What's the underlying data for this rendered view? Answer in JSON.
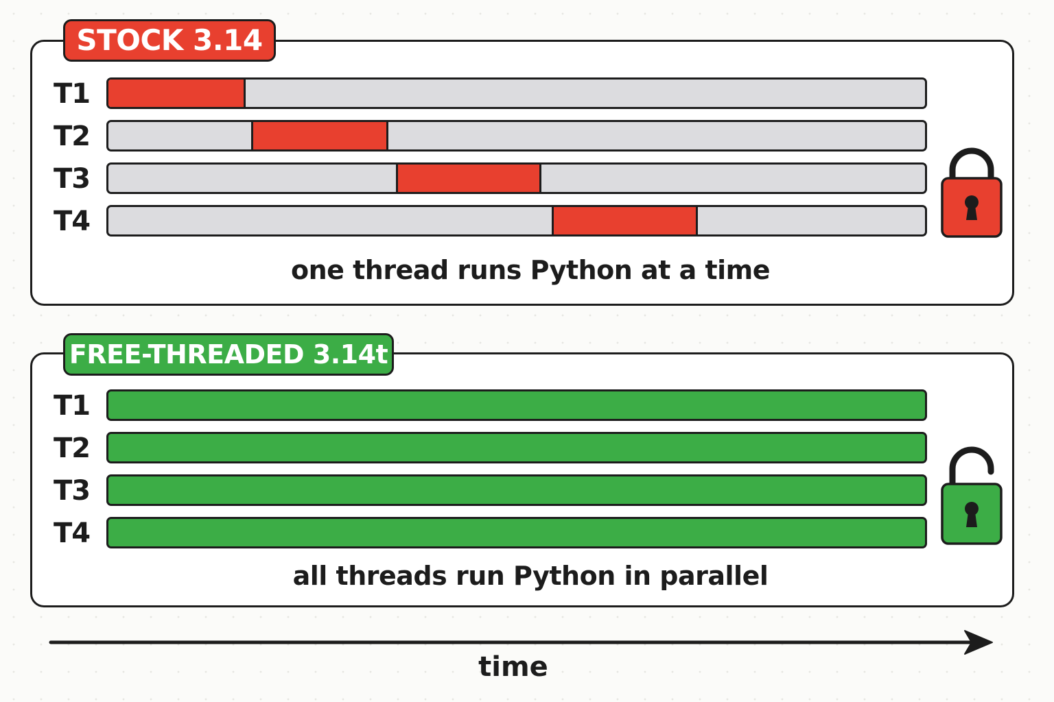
{
  "stock": {
    "tag": "STOCK 3.14",
    "caption": "one thread runs Python at a time",
    "lock_state": "locked",
    "lock_icon": "closed-padlock-icon",
    "threads": [
      {
        "label": "T1",
        "active_start": 0.0,
        "active_end": 0.168
      },
      {
        "label": "T2",
        "active_start": 0.175,
        "active_end": 0.343
      },
      {
        "label": "T3",
        "active_start": 0.352,
        "active_end": 0.53
      },
      {
        "label": "T4",
        "active_start": 0.543,
        "active_end": 0.722
      }
    ]
  },
  "free": {
    "tag": "FREE-THREADED 3.14t",
    "caption": "all threads run Python in parallel",
    "lock_state": "unlocked",
    "lock_icon": "open-padlock-icon",
    "threads": [
      {
        "label": "T1",
        "active_start": 0.0,
        "active_end": 1.0
      },
      {
        "label": "T2",
        "active_start": 0.0,
        "active_end": 1.0
      },
      {
        "label": "T3",
        "active_start": 0.0,
        "active_end": 1.0
      },
      {
        "label": "T4",
        "active_start": 0.0,
        "active_end": 1.0
      }
    ]
  },
  "axis": {
    "label": "time",
    "icon": "right-arrow-icon"
  },
  "colors": {
    "stock_accent": "#e8402f",
    "free_accent": "#3cad46",
    "idle": "#dcdcdf",
    "outline": "#1c1c1c"
  }
}
